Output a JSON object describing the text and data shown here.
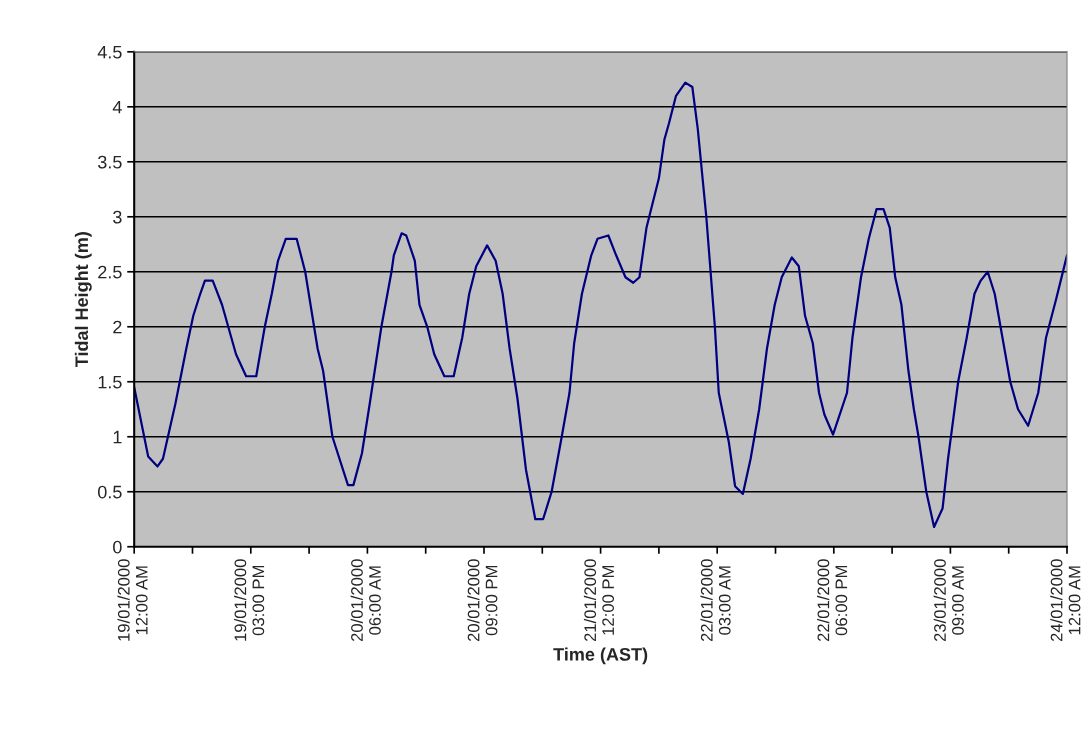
{
  "chart_data": {
    "type": "line",
    "xlabel": "Time (AST)",
    "ylabel": "Tidal Height (m)",
    "x": [
      "2000-01-19T00:00",
      "2000-01-19T01:48",
      "2000-01-19T03:00",
      "2000-01-19T03:42",
      "2000-01-19T05:18",
      "2000-01-19T06:42",
      "2000-01-19T07:36",
      "2000-01-19T08:30",
      "2000-01-19T09:06",
      "2000-01-19T10:06",
      "2000-01-19T11:18",
      "2000-01-19T13:06",
      "2000-01-19T14:24",
      "2000-01-19T15:42",
      "2000-01-19T16:48",
      "2000-01-19T17:42",
      "2000-01-19T18:30",
      "2000-01-19T19:30",
      "2000-01-19T20:54",
      "2000-01-19T22:00",
      "2000-01-19T23:36",
      "2000-01-20T00:18",
      "2000-01-20T01:30",
      "2000-01-20T03:30",
      "2000-01-20T04:12",
      "2000-01-20T05:18",
      "2000-01-20T06:18",
      "2000-01-20T07:48",
      "2000-01-20T09:06",
      "2000-01-20T09:24",
      "2000-01-20T10:24",
      "2000-01-20T11:00",
      "2000-01-20T12:06",
      "2000-01-20T12:42",
      "2000-01-20T13:42",
      "2000-01-20T14:36",
      "2000-01-20T15:54",
      "2000-01-20T17:06",
      "2000-01-20T18:12",
      "2000-01-20T19:06",
      "2000-01-20T20:00",
      "2000-01-20T21:24",
      "2000-01-20T22:30",
      "2000-01-20T23:24",
      "2000-01-21T00:18",
      "2000-01-21T01:18",
      "2000-01-21T02:24",
      "2000-01-21T03:36",
      "2000-01-21T04:36",
      "2000-01-21T05:42",
      "2000-01-21T07:00",
      "2000-01-21T08:00",
      "2000-01-21T08:36",
      "2000-01-21T09:36",
      "2000-01-21T10:48",
      "2000-01-21T11:36",
      "2000-01-21T13:00",
      "2000-01-21T14:00",
      "2000-01-21T15:12",
      "2000-01-21T16:12",
      "2000-01-21T17:00",
      "2000-01-21T17:54",
      "2000-01-21T19:30",
      "2000-01-21T20:12",
      "2000-01-21T20:48",
      "2000-01-21T21:42",
      "2000-01-21T22:54",
      "2000-01-21T23:48",
      "2000-01-22T00:30",
      "2000-01-22T01:36",
      "2000-01-22T02:42",
      "2000-01-22T03:12",
      "2000-01-22T04:30",
      "2000-01-22T05:18",
      "2000-01-22T06:18",
      "2000-01-22T07:18",
      "2000-01-22T08:24",
      "2000-01-22T09:24",
      "2000-01-22T10:24",
      "2000-01-22T11:18",
      "2000-01-22T12:36",
      "2000-01-22T13:30",
      "2000-01-22T14:18",
      "2000-01-22T15:18",
      "2000-01-22T16:06",
      "2000-01-22T16:48",
      "2000-01-22T17:54",
      "2000-01-22T19:42",
      "2000-01-22T20:24",
      "2000-01-22T21:30",
      "2000-01-22T22:30",
      "2000-01-22T23:30",
      "2000-01-23T00:24",
      "2000-01-23T01:12",
      "2000-01-23T01:54",
      "2000-01-23T02:42",
      "2000-01-23T03:36",
      "2000-01-23T04:18",
      "2000-01-23T04:54",
      "2000-01-23T05:54",
      "2000-01-23T06:54",
      "2000-01-23T08:00",
      "2000-01-23T08:42",
      "2000-01-23T10:00",
      "2000-01-23T11:06",
      "2000-01-23T12:06",
      "2000-01-23T12:54",
      "2000-01-23T13:48",
      "2000-01-23T14:42",
      "2000-01-23T15:42",
      "2000-01-23T16:42",
      "2000-01-23T17:42",
      "2000-01-23T19:00",
      "2000-01-23T20:18",
      "2000-01-23T21:18",
      "2000-01-23T22:36",
      "2000-01-24T00:00"
    ],
    "series": [
      {
        "color": "#000080",
        "values": [
          1.45,
          0.82,
          0.73,
          0.8,
          1.3,
          1.8,
          2.1,
          2.3,
          2.42,
          2.42,
          2.2,
          1.75,
          1.55,
          1.55,
          2.0,
          2.3,
          2.6,
          2.8,
          2.8,
          2.5,
          1.8,
          1.6,
          1.0,
          0.56,
          0.56,
          0.85,
          1.3,
          2.0,
          2.5,
          2.65,
          2.85,
          2.83,
          2.6,
          2.2,
          2.0,
          1.75,
          1.55,
          1.55,
          1.9,
          2.3,
          2.55,
          2.74,
          2.6,
          2.3,
          1.8,
          1.35,
          0.7,
          0.25,
          0.25,
          0.5,
          1.0,
          1.4,
          1.85,
          2.3,
          2.65,
          2.8,
          2.83,
          2.65,
          2.45,
          2.4,
          2.45,
          2.9,
          3.35,
          3.7,
          3.85,
          4.1,
          4.22,
          4.18,
          3.8,
          3.0,
          2.0,
          1.4,
          0.95,
          0.55,
          0.48,
          0.8,
          1.25,
          1.8,
          2.2,
          2.45,
          2.63,
          2.55,
          2.1,
          1.85,
          1.4,
          1.2,
          1.02,
          1.4,
          1.9,
          2.45,
          2.8,
          3.07,
          3.07,
          2.9,
          2.45,
          2.2,
          1.6,
          1.25,
          1.0,
          0.5,
          0.18,
          0.35,
          0.8,
          1.5,
          1.9,
          2.3,
          2.42,
          2.5,
          2.3,
          1.9,
          1.5,
          1.25,
          1.1,
          1.4,
          1.9,
          2.25,
          2.65
        ]
      }
    ],
    "xlim": [
      "2000-01-19T00:00",
      "2000-01-24T00:00"
    ],
    "xticks": [
      {
        "value": "2000-01-19T00:00",
        "label": "19/01/2000\n12:00 AM"
      },
      {
        "value": "2000-01-19T07:30",
        "label": null
      },
      {
        "value": "2000-01-19T15:00",
        "label": "19/01/2000\n03:00 PM"
      },
      {
        "value": "2000-01-19T22:30",
        "label": null
      },
      {
        "value": "2000-01-20T06:00",
        "label": "20/01/2000\n06:00 AM"
      },
      {
        "value": "2000-01-20T13:30",
        "label": null
      },
      {
        "value": "2000-01-20T21:00",
        "label": "20/01/2000\n09:00 PM"
      },
      {
        "value": "2000-01-21T04:30",
        "label": null
      },
      {
        "value": "2000-01-21T12:00",
        "label": "21/01/2000\n12:00 PM"
      },
      {
        "value": "2000-01-21T19:30",
        "label": null
      },
      {
        "value": "2000-01-22T03:00",
        "label": "22/01/2000\n03:00 AM"
      },
      {
        "value": "2000-01-22T10:30",
        "label": null
      },
      {
        "value": "2000-01-22T18:00",
        "label": "22/01/2000\n06:00 PM"
      },
      {
        "value": "2000-01-23T01:30",
        "label": null
      },
      {
        "value": "2000-01-23T09:00",
        "label": "23/01/2000\n09:00 AM"
      },
      {
        "value": "2000-01-23T16:30",
        "label": null
      },
      {
        "value": "2000-01-24T00:00",
        "label": "24/01/2000\n12:00 AM"
      }
    ],
    "ylim": [
      0,
      4.5
    ],
    "yticks": [
      0,
      0.5,
      1,
      1.5,
      2,
      2.5,
      3,
      3.5,
      4,
      4.5
    ],
    "grid": "y",
    "legend": false,
    "marker": "none",
    "line_style": "solid"
  }
}
